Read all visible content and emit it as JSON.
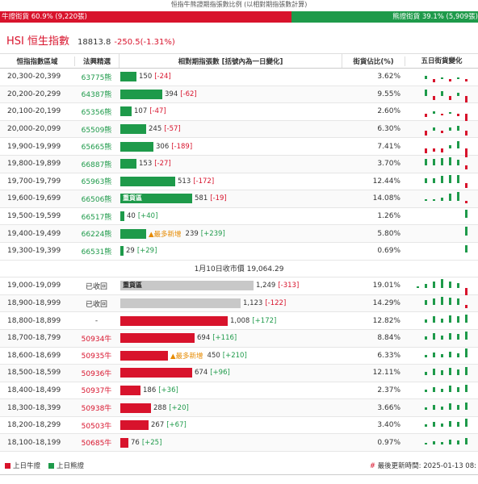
{
  "title": "恒指牛熊證期指張數比例 (以相對期指張數計算)",
  "ratio": {
    "bull_label": "牛證街貨 60.9% (9,220張)",
    "bear_label": "熊證街貨 39.1% (5,909張)",
    "bull_fraction": 0.609,
    "bull_color": "#d8132c",
    "bear_color": "#1e9a4a"
  },
  "hsi": {
    "name": "HSI 恒生指數",
    "price": "18813.8",
    "change": "-250.5(-1.31%)"
  },
  "columns": {
    "range": "恒指指數區域",
    "code": "法興精選",
    "bar": "相對期指張數 [括號內為一日變化]",
    "pct": "街貨佔比(%)",
    "spark": "五日街貨變化"
  },
  "close_label": "1月10日收市價 19,064.29",
  "bear_rows": [
    {
      "range": "20,300-20,399",
      "code": "63775熊",
      "value": "150",
      "delta": "[-24]",
      "bar_frac": 0.09,
      "pct": "3.62%",
      "spark": [
        0,
        4,
        -4,
        2,
        -3,
        2,
        -3
      ]
    },
    {
      "range": "20,200-20,299",
      "code": "64387熊",
      "value": "394",
      "delta": "[-62]",
      "bar_frac": 0.235,
      "pct": "9.55%",
      "spark": [
        0,
        8,
        -5,
        6,
        -5,
        4,
        -8
      ]
    },
    {
      "range": "20,100-20,199",
      "code": "65356熊",
      "value": "107",
      "delta": "[-47]",
      "bar_frac": 0.064,
      "pct": "2.60%",
      "spark": [
        0,
        -4,
        3,
        -2,
        2,
        -3,
        -9
      ]
    },
    {
      "range": "20,000-20,099",
      "code": "65509熊",
      "value": "245",
      "delta": "[-57]",
      "bar_frac": 0.146,
      "pct": "6.30%",
      "spark": [
        0,
        -6,
        4,
        -3,
        4,
        6,
        -6
      ]
    },
    {
      "range": "19,900-19,999",
      "code": "65665熊",
      "value": "306",
      "delta": "[-189]",
      "bar_frac": 0.183,
      "pct": "7.41%",
      "spark": [
        0,
        -6,
        -4,
        -5,
        4,
        9,
        -13
      ]
    },
    {
      "range": "19,800-19,899",
      "code": "66887熊",
      "value": "153",
      "delta": "[-27]",
      "bar_frac": 0.091,
      "pct": "3.70%",
      "spark": [
        0,
        8,
        8,
        9,
        10,
        7,
        -5
      ]
    },
    {
      "range": "19,700-19,799",
      "code": "65963熊",
      "value": "513",
      "delta": "[-172]",
      "bar_frac": 0.306,
      "pct": "12.44%",
      "spark": [
        0,
        6,
        6,
        9,
        10,
        10,
        -6
      ]
    },
    {
      "range": "19,600-19,699",
      "code": "66506熊",
      "value": "581",
      "delta": "[-19]",
      "bar_frac": 0.4,
      "pct": "14.08%",
      "label": "重貨區",
      "spark": [
        0,
        2,
        2,
        4,
        9,
        12,
        -3
      ]
    },
    {
      "range": "19,500-19,599",
      "code": "66517熊",
      "value": "40",
      "delta": "[+40]",
      "bar_frac": 0.024,
      "pct": "1.26%",
      "spark": [
        0,
        0,
        0,
        0,
        0,
        0,
        10
      ]
    },
    {
      "range": "19,400-19,499",
      "code": "66224熊",
      "value": "239",
      "delta": "[+239]",
      "bar_frac": 0.143,
      "pct": "5.80%",
      "tag": "▲最多新增",
      "spark": [
        0,
        0,
        0,
        0,
        0,
        0,
        12
      ]
    },
    {
      "range": "19,300-19,399",
      "code": "66531熊",
      "value": "29",
      "delta": "[+29]",
      "bar_frac": 0.017,
      "pct": "0.69%",
      "spark": [
        0,
        0,
        0,
        0,
        0,
        0,
        9
      ]
    }
  ],
  "bull_rows": [
    {
      "range": "19,000-19,099",
      "code": "已收回",
      "value": "1,249",
      "delta": "[-313]",
      "bar_frac": 0.745,
      "pct": "19.01%",
      "label": "重貨區",
      "kind": "grey",
      "spark": [
        2,
        5,
        8,
        11,
        8,
        6,
        -9
      ]
    },
    {
      "range": "18,900-18,999",
      "code": "已收回",
      "value": "1,123",
      "delta": "[-122]",
      "bar_frac": 0.67,
      "pct": "14.29%",
      "kind": "grey",
      "spark": [
        0,
        6,
        8,
        10,
        9,
        8,
        -4
      ]
    },
    {
      "range": "18,800-18,899",
      "code": "-",
      "value": "1,008",
      "delta": "[+172]",
      "bar_frac": 0.601,
      "pct": "12.82%",
      "kind": "red",
      "spark": [
        0,
        4,
        8,
        5,
        9,
        8,
        10
      ]
    },
    {
      "range": "18,700-18,799",
      "code": "50934牛",
      "value": "694",
      "delta": "[+116]",
      "bar_frac": 0.414,
      "pct": "8.84%",
      "kind": "red",
      "spark": [
        0,
        4,
        8,
        5,
        8,
        7,
        10
      ]
    },
    {
      "range": "18,600-18,699",
      "code": "50935牛",
      "value": "450",
      "delta": "[+210]",
      "bar_frac": 0.268,
      "pct": "6.33%",
      "kind": "red",
      "tag": "▲最多新增",
      "spark": [
        0,
        3,
        6,
        4,
        7,
        5,
        12
      ]
    },
    {
      "range": "18,500-18,599",
      "code": "50936牛",
      "value": "674",
      "delta": "[+96]",
      "bar_frac": 0.402,
      "pct": "12.11%",
      "kind": "red",
      "spark": [
        0,
        4,
        8,
        6,
        9,
        7,
        10
      ]
    },
    {
      "range": "18,400-18,499",
      "code": "50937牛",
      "value": "186",
      "delta": "[+36]",
      "bar_frac": 0.111,
      "pct": "2.37%",
      "kind": "red",
      "spark": [
        0,
        3,
        6,
        4,
        8,
        6,
        9
      ]
    },
    {
      "range": "18,300-18,399",
      "code": "50938牛",
      "value": "288",
      "delta": "[+20]",
      "bar_frac": 0.172,
      "pct": "3.66%",
      "kind": "red",
      "spark": [
        0,
        3,
        6,
        4,
        8,
        6,
        9
      ]
    },
    {
      "range": "18,200-18,299",
      "code": "50503牛",
      "value": "267",
      "delta": "[+67]",
      "bar_frac": 0.159,
      "pct": "3.40%",
      "kind": "red",
      "spark": [
        0,
        3,
        6,
        4,
        7,
        6,
        10
      ]
    },
    {
      "range": "18,100-18,199",
      "code": "50685牛",
      "value": "76",
      "delta": "[+25]",
      "bar_frac": 0.045,
      "pct": "0.97%",
      "kind": "red",
      "spark": [
        0,
        2,
        4,
        3,
        6,
        5,
        8
      ]
    }
  ],
  "legend": {
    "bull": "上日牛證",
    "bear": "上日熊證",
    "updated_hash": "#",
    "updated": "最後更新時間: 2025-01-13 08:"
  }
}
